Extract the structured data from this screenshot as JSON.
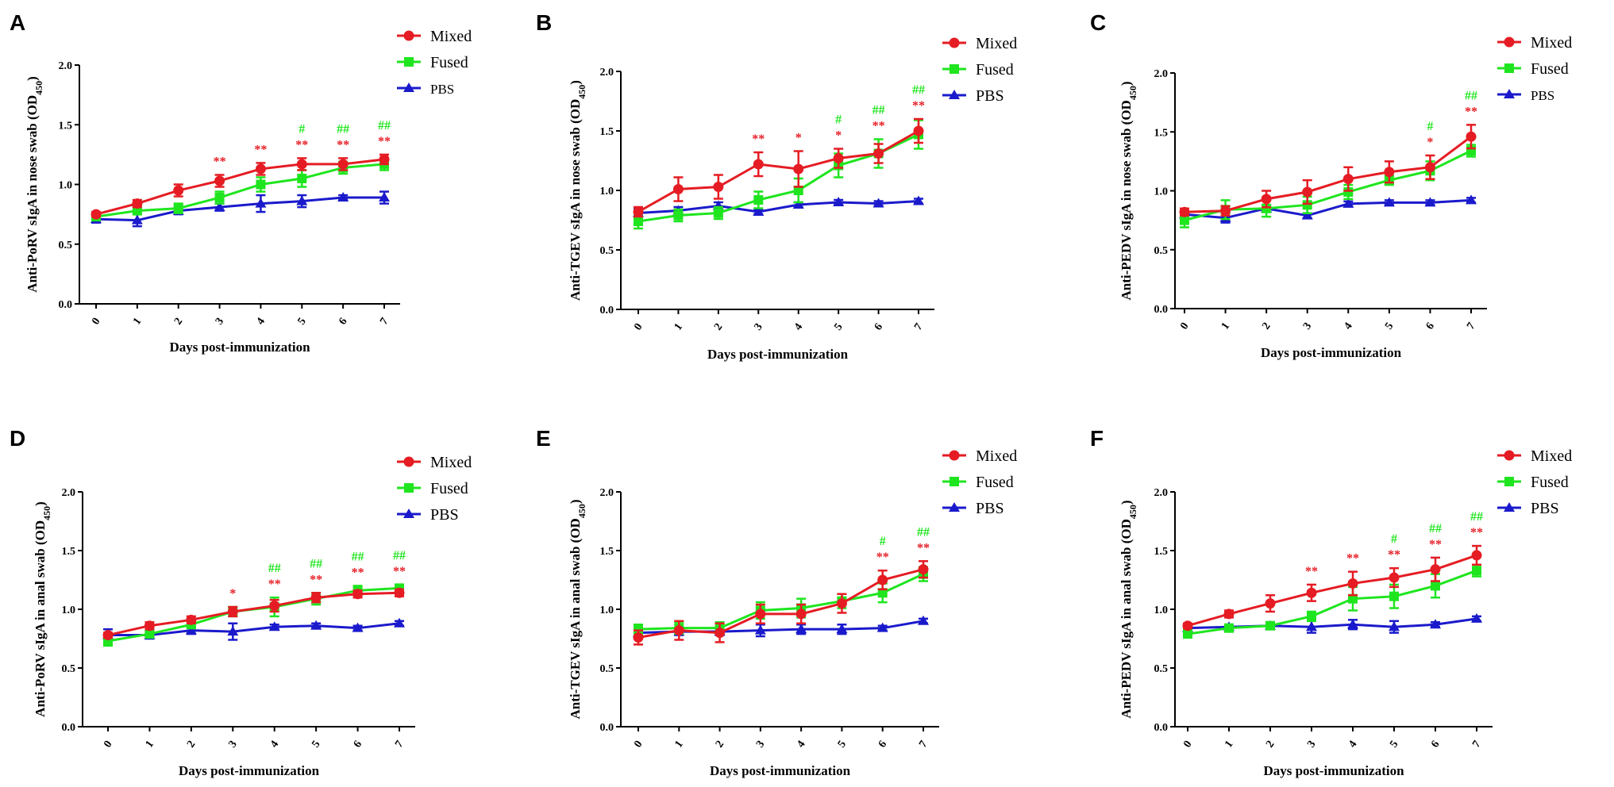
{
  "colors": {
    "Mixed": "#e51c23",
    "Fused": "#1fe51f",
    "PBS": "#1a1acc"
  },
  "chart_data": [
    {
      "panel": "A",
      "type": "line",
      "ylabel": "Anti-PoRV sIgA in nose swab (OD450)",
      "ylabel_main": "Anti-PoRV sIgA in nose swab (OD",
      "ylabel_sub": "450",
      "ylabel_end": ")",
      "xlabel": "Days post-immunization",
      "x": [
        "0",
        "1",
        "2",
        "3",
        "4",
        "5",
        "6",
        "7"
      ],
      "ylim": [
        0,
        2.0
      ],
      "yticks": [
        "0.0",
        "0.5",
        "1.0",
        "1.5",
        "2.0"
      ],
      "series": [
        {
          "name": "Mixed",
          "values": [
            0.75,
            0.84,
            0.95,
            1.03,
            1.13,
            1.17,
            1.17,
            1.21
          ],
          "err": [
            0.02,
            0.03,
            0.05,
            0.05,
            0.05,
            0.05,
            0.05,
            0.04
          ]
        },
        {
          "name": "Fused",
          "values": [
            0.73,
            0.78,
            0.8,
            0.89,
            1.0,
            1.05,
            1.14,
            1.17
          ],
          "err": [
            0.02,
            0.03,
            0.04,
            0.05,
            0.06,
            0.07,
            0.05,
            0.05
          ]
        },
        {
          "name": "PBS",
          "values": [
            0.71,
            0.7,
            0.78,
            0.81,
            0.84,
            0.86,
            0.89,
            0.89
          ],
          "err": [
            0.03,
            0.05,
            0.03,
            0.03,
            0.07,
            0.05,
            0.02,
            0.05
          ]
        }
      ],
      "annotations": {
        "red": [
          "",
          "",
          "",
          "**",
          "**",
          "**",
          "**",
          "**"
        ],
        "green": [
          "",
          "",
          "",
          "",
          "",
          "#",
          "##",
          "##"
        ]
      },
      "legend_small_pbs": true
    },
    {
      "panel": "B",
      "type": "line",
      "ylabel": "Anti-TGEV sIgA in nose swab (OD450)",
      "ylabel_main": "Anti-TGEV sIgA in nose swab (OD",
      "ylabel_sub": "450",
      "ylabel_end": ")",
      "xlabel": "Days post-immunization",
      "x": [
        "0",
        "1",
        "2",
        "3",
        "4",
        "5",
        "6",
        "7"
      ],
      "ylim": [
        0,
        2.0
      ],
      "yticks": [
        "0.0",
        "0.5",
        "1.0",
        "1.5",
        "2.0"
      ],
      "series": [
        {
          "name": "Mixed",
          "values": [
            0.82,
            1.01,
            1.03,
            1.22,
            1.18,
            1.27,
            1.31,
            1.5
          ],
          "err": [
            0.04,
            0.1,
            0.1,
            0.1,
            0.15,
            0.08,
            0.08,
            0.1
          ]
        },
        {
          "name": "Fused",
          "values": [
            0.74,
            0.79,
            0.81,
            0.92,
            1.0,
            1.21,
            1.31,
            1.47
          ],
          "err": [
            0.06,
            0.05,
            0.05,
            0.07,
            0.1,
            0.1,
            0.12,
            0.12
          ]
        },
        {
          "name": "PBS",
          "values": [
            0.81,
            0.83,
            0.87,
            0.82,
            0.88,
            0.9,
            0.89,
            0.91
          ],
          "err": [
            0.04,
            0.03,
            0.03,
            0.02,
            0.02,
            0.02,
            0.02,
            0.02
          ]
        }
      ],
      "annotations": {
        "red": [
          "",
          "",
          "",
          "**",
          "*",
          "*",
          "**",
          "**"
        ],
        "green": [
          "",
          "",
          "",
          "",
          "",
          "#",
          "##",
          "##"
        ]
      },
      "legend_small_pbs": false
    },
    {
      "panel": "C",
      "type": "line",
      "ylabel": "Anti-PEDV sIgA in nose swab (OD450)",
      "ylabel_main": "Anti-PEDV sIgA in nose swab (OD",
      "ylabel_sub": "450",
      "ylabel_end": ")",
      "xlabel": "Days post-immunization",
      "x": [
        "0",
        "1",
        "2",
        "3",
        "4",
        "5",
        "6",
        "7"
      ],
      "ylim": [
        0,
        2.0
      ],
      "yticks": [
        "0.0",
        "0.5",
        "1.0",
        "1.5",
        "2.0"
      ],
      "series": [
        {
          "name": "Mixed",
          "values": [
            0.82,
            0.83,
            0.93,
            0.99,
            1.1,
            1.16,
            1.2,
            1.46
          ],
          "err": [
            0.03,
            0.04,
            0.07,
            0.1,
            0.1,
            0.09,
            0.1,
            0.1
          ]
        },
        {
          "name": "Fused",
          "values": [
            0.75,
            0.84,
            0.85,
            0.88,
            0.99,
            1.09,
            1.17,
            1.34
          ],
          "err": [
            0.06,
            0.08,
            0.07,
            0.07,
            0.06,
            0.04,
            0.08,
            0.05
          ]
        },
        {
          "name": "PBS",
          "values": [
            0.8,
            0.77,
            0.85,
            0.79,
            0.89,
            0.9,
            0.9,
            0.92
          ],
          "err": [
            0.03,
            0.04,
            0.03,
            0.02,
            0.02,
            0.02,
            0.02,
            0.02
          ]
        }
      ],
      "annotations": {
        "red": [
          "",
          "",
          "",
          "",
          "",
          "",
          "*",
          "**"
        ],
        "green": [
          "",
          "",
          "",
          "",
          "",
          "",
          "#",
          "##"
        ]
      },
      "legend_small_pbs": true
    },
    {
      "panel": "D",
      "type": "line",
      "ylabel": "Anti-PoRV sIgA in anal swab (OD450)",
      "ylabel_main": "Anti-PoRV sIgA in anal swab (OD",
      "ylabel_sub": "450",
      "ylabel_end": ")",
      "xlabel": "Days post-immunization",
      "x": [
        "0",
        "1",
        "2",
        "3",
        "4",
        "5",
        "6",
        "7"
      ],
      "ylim": [
        0,
        2.0
      ],
      "yticks": [
        "0.0",
        "0.5",
        "1.0",
        "1.5",
        "2.0"
      ],
      "series": [
        {
          "name": "Mixed",
          "values": [
            0.78,
            0.86,
            0.91,
            0.98,
            1.03,
            1.1,
            1.13,
            1.14
          ],
          "err": [
            0.02,
            0.03,
            0.03,
            0.04,
            0.05,
            0.04,
            0.03,
            0.03
          ]
        },
        {
          "name": "Fused",
          "values": [
            0.73,
            0.79,
            0.87,
            0.98,
            1.02,
            1.09,
            1.16,
            1.18
          ],
          "err": [
            0.04,
            0.03,
            0.03,
            0.04,
            0.08,
            0.05,
            0.04,
            0.03
          ]
        },
        {
          "name": "PBS",
          "values": [
            0.78,
            0.78,
            0.82,
            0.81,
            0.85,
            0.86,
            0.84,
            0.88
          ],
          "err": [
            0.05,
            0.03,
            0.03,
            0.07,
            0.02,
            0.02,
            0.02,
            0.02
          ]
        }
      ],
      "annotations": {
        "red": [
          "",
          "",
          "",
          "*",
          "**",
          "**",
          "**",
          "**"
        ],
        "green": [
          "",
          "",
          "",
          "",
          "##",
          "##",
          "##",
          "##"
        ]
      },
      "legend_small_pbs": false
    },
    {
      "panel": "E",
      "type": "line",
      "ylabel": "Anti-TGEV sIgA in anal swab (OD450)",
      "ylabel_main": "Anti-TGEV sIgA in anal swab (OD",
      "ylabel_sub": "450",
      "ylabel_end": ")",
      "xlabel": "Days post-immunization",
      "x": [
        "0",
        "1",
        "2",
        "3",
        "4",
        "5",
        "6",
        "7"
      ],
      "ylim": [
        0,
        2.0
      ],
      "yticks": [
        "0.0",
        "0.5",
        "1.0",
        "1.5",
        "2.0"
      ],
      "series": [
        {
          "name": "Mixed",
          "values": [
            0.76,
            0.82,
            0.8,
            0.96,
            0.96,
            1.05,
            1.25,
            1.34
          ],
          "err": [
            0.06,
            0.08,
            0.08,
            0.08,
            0.08,
            0.08,
            0.08,
            0.07
          ]
        },
        {
          "name": "Fused",
          "values": [
            0.83,
            0.84,
            0.84,
            0.99,
            1.01,
            1.07,
            1.14,
            1.3
          ],
          "err": [
            0.04,
            0.05,
            0.05,
            0.07,
            0.08,
            0.06,
            0.08,
            0.06
          ]
        },
        {
          "name": "PBS",
          "values": [
            0.8,
            0.81,
            0.81,
            0.82,
            0.83,
            0.83,
            0.84,
            0.9
          ],
          "err": [
            0.03,
            0.03,
            0.03,
            0.05,
            0.04,
            0.04,
            0.02,
            0.02
          ]
        }
      ],
      "annotations": {
        "red": [
          "",
          "",
          "",
          "",
          "",
          "",
          "**",
          "**"
        ],
        "green": [
          "",
          "",
          "",
          "",
          "",
          "",
          "#",
          "##"
        ]
      },
      "legend_small_pbs": false
    },
    {
      "panel": "F",
      "type": "line",
      "ylabel": "Anti-PEDV sIgA in anal swab (OD450)",
      "ylabel_main": "Anti-PEDV sIgA in anal swab (OD",
      "ylabel_sub": "450",
      "ylabel_end": ")",
      "xlabel": "Days post-immunization",
      "x": [
        "0",
        "1",
        "2",
        "3",
        "4",
        "5",
        "6",
        "7"
      ],
      "ylim": [
        0,
        2.0
      ],
      "yticks": [
        "0.0",
        "0.5",
        "1.0",
        "1.5",
        "2.0"
      ],
      "series": [
        {
          "name": "Mixed",
          "values": [
            0.86,
            0.96,
            1.05,
            1.14,
            1.22,
            1.27,
            1.34,
            1.46
          ],
          "err": [
            0.02,
            0.03,
            0.07,
            0.07,
            0.1,
            0.08,
            0.1,
            0.08
          ]
        },
        {
          "name": "Fused",
          "values": [
            0.79,
            0.84,
            0.86,
            0.94,
            1.09,
            1.11,
            1.2,
            1.33
          ],
          "err": [
            0.03,
            0.02,
            0.02,
            0.04,
            0.1,
            0.1,
            0.1,
            0.05
          ]
        },
        {
          "name": "PBS",
          "values": [
            0.84,
            0.85,
            0.86,
            0.85,
            0.87,
            0.85,
            0.87,
            0.92
          ],
          "err": [
            0.02,
            0.02,
            0.02,
            0.05,
            0.04,
            0.05,
            0.02,
            0.02
          ]
        }
      ],
      "annotations": {
        "red": [
          "",
          "",
          "",
          "**",
          "**",
          "**",
          "**",
          "**"
        ],
        "green": [
          "",
          "",
          "",
          "",
          "",
          "#",
          "##",
          "##"
        ]
      },
      "legend_small_pbs": false
    }
  ]
}
